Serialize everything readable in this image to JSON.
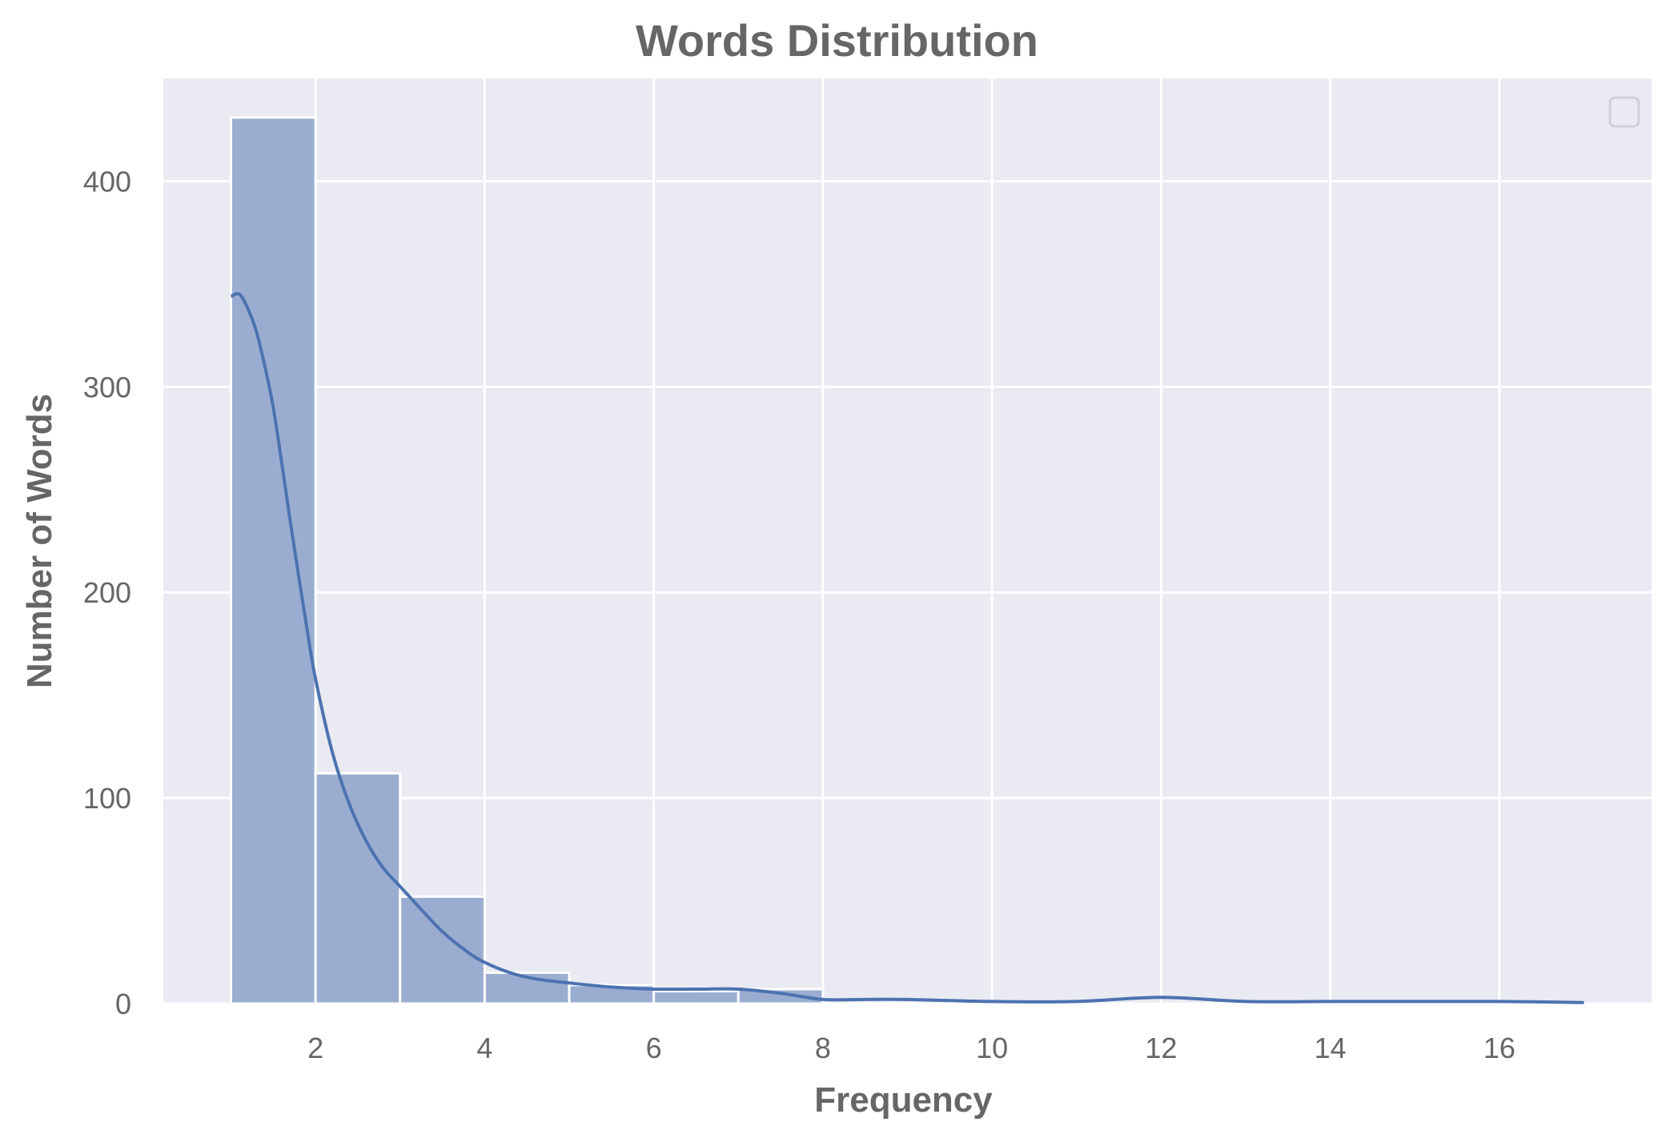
{
  "chart_data": {
    "type": "bar",
    "title": "Words Distribution",
    "xlabel": "Frequency",
    "ylabel": "Number of Words",
    "xlim": [
      0.2,
      17.8
    ],
    "ylim": [
      0,
      450
    ],
    "x_ticks": [
      2,
      4,
      6,
      8,
      10,
      12,
      14,
      16
    ],
    "y_ticks": [
      0,
      100,
      200,
      300,
      400
    ],
    "bin_width": 1,
    "bins": [
      {
        "x0": 1,
        "x1": 2,
        "count": 431
      },
      {
        "x0": 2,
        "x1": 3,
        "count": 112
      },
      {
        "x0": 3,
        "x1": 4,
        "count": 52
      },
      {
        "x0": 4,
        "x1": 5,
        "count": 15
      },
      {
        "x0": 5,
        "x1": 6,
        "count": 9
      },
      {
        "x0": 6,
        "x1": 7,
        "count": 6
      },
      {
        "x0": 7,
        "x1": 8,
        "count": 7
      },
      {
        "x0": 8,
        "x1": 9,
        "count": 0
      },
      {
        "x0": 9,
        "x1": 10,
        "count": 0
      },
      {
        "x0": 10,
        "x1": 11,
        "count": 0
      },
      {
        "x0": 11,
        "x1": 12,
        "count": 0
      },
      {
        "x0": 12,
        "x1": 13,
        "count": 0
      },
      {
        "x0": 13,
        "x1": 14,
        "count": 0
      },
      {
        "x0": 14,
        "x1": 15,
        "count": 0
      },
      {
        "x0": 15,
        "x1": 16,
        "count": 0
      },
      {
        "x0": 16,
        "x1": 17,
        "count": 0
      }
    ],
    "kde": {
      "x": [
        1.0,
        1.1,
        1.2,
        1.3,
        1.4,
        1.5,
        1.6,
        1.7,
        1.8,
        1.9,
        2.0,
        2.2,
        2.4,
        2.6,
        2.8,
        3.0,
        3.2,
        3.5,
        3.8,
        4.0,
        4.3,
        4.6,
        5.0,
        5.5,
        6.0,
        6.5,
        7.0,
        7.5,
        8.0,
        8.5,
        9.0,
        10.0,
        11.0,
        12.0,
        13.0,
        14.0,
        15.0,
        16.0,
        17.0
      ],
      "y": [
        344,
        345,
        338,
        327,
        310,
        290,
        263,
        235,
        208,
        182,
        158,
        122,
        97,
        79,
        66,
        57,
        48,
        35,
        25,
        20,
        15,
        12,
        10,
        8,
        7,
        7,
        7,
        5,
        2,
        2,
        2,
        1,
        1,
        3,
        1,
        1,
        1,
        1,
        0.5
      ]
    },
    "bar_color": "#9aadd1",
    "line_color": "#4c72b0",
    "plot_background": "#eaeaf2",
    "grid": true,
    "legend": "top-right (empty)"
  }
}
